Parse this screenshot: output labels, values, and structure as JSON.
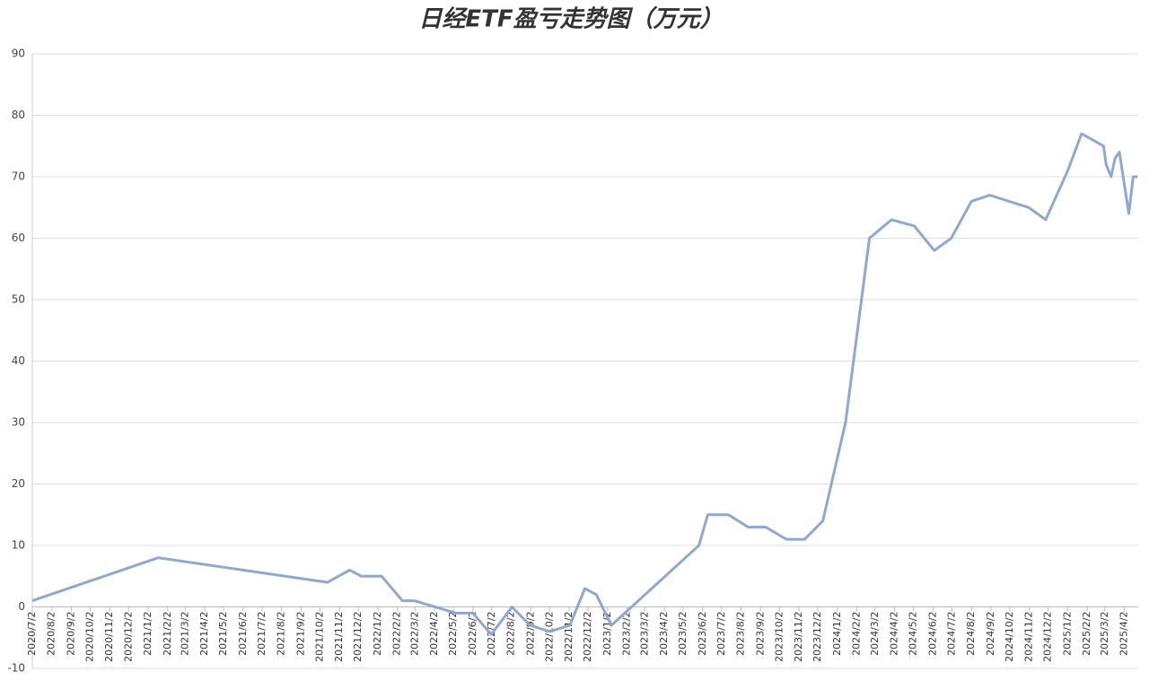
{
  "chart_data": {
    "type": "line",
    "title": "日经ETF盈亏走势图（万元）",
    "x": [
      "2020/7/2",
      "2021/1/18",
      "2021/10/14",
      "2021/11/18",
      "2021/12/7",
      "2022/1/8",
      "2022/2/10",
      "2022/3/1",
      "2022/5/6",
      "2022/6/2",
      "2022/7/1",
      "2022/8/3",
      "2022/9/1",
      "2022/10/2",
      "2022/11/3",
      "2022/11/27",
      "2022/12/15",
      "2023/1/8",
      "2023/5/27",
      "2023/6/10",
      "2023/7/13",
      "2023/8/13",
      "2023/9/10",
      "2023/10/13",
      "2023/11/11",
      "2023/12/10",
      "2024/1/15",
      "2024/2/22",
      "2024/3/28",
      "2024/5/3",
      "2024/6/4",
      "2024/7/1",
      "2024/8/2",
      "2024/8/31",
      "2024/11/1",
      "2024/11/28",
      "2025/1/2",
      "2025/1/24",
      "2025/2/28",
      "2025/3/4",
      "2025/3/12",
      "2025/3/18",
      "2025/3/25",
      "2025/4/9",
      "2025/4/16",
      "2025/4/23"
    ],
    "values": [
      1,
      8,
      4,
      6,
      5,
      5,
      1,
      1,
      -1,
      -1,
      -4.5,
      0,
      -3,
      -4,
      -3,
      3,
      2,
      -3,
      10,
      15,
      15,
      13,
      13,
      11,
      11,
      14,
      30,
      60,
      63,
      62,
      58,
      60,
      66,
      67,
      65,
      63,
      71,
      77,
      75,
      72,
      70,
      73,
      74,
      64,
      70,
      70
    ],
    "color": "#8fa8d0",
    "xlim": [
      "2020/7/2",
      "2025/4/24"
    ],
    "xticks": [
      "2020/7/2",
      "2020/8/2",
      "2020/9/2",
      "2020/10/2",
      "2020/11/2",
      "2020/12/2",
      "2021/1/2",
      "2021/2/2",
      "2021/3/2",
      "2021/4/2",
      "2021/5/2",
      "2021/6/2",
      "2021/7/2",
      "2021/8/2",
      "2021/9/2",
      "2021/10/2",
      "2021/11/2",
      "2021/12/2",
      "2022/1/2",
      "2022/2/2",
      "2022/3/2",
      "2022/4/2",
      "2022/5/2",
      "2022/6/2",
      "2022/7/2",
      "2022/8/2",
      "2022/9/2",
      "2022/10/2",
      "2022/11/2",
      "2022/12/2",
      "2023/1/2",
      "2023/2/2",
      "2023/3/2",
      "2023/4/2",
      "2023/5/2",
      "2023/6/2",
      "2023/7/2",
      "2023/8/2",
      "2023/9/2",
      "2023/10/2",
      "2023/11/2",
      "2023/12/2",
      "2024/1/2",
      "2024/2/2",
      "2024/3/2",
      "2024/4/2",
      "2024/5/2",
      "2024/6/2",
      "2024/7/2",
      "2024/8/2",
      "2024/9/2",
      "2024/10/2",
      "2024/11/2",
      "2024/12/2",
      "2025/1/2",
      "2025/2/2",
      "2025/3/2",
      "2025/4/2"
    ],
    "ylim": [
      -10,
      90
    ],
    "yticks": [
      -10,
      0,
      10,
      20,
      30,
      40,
      50,
      60,
      70,
      80,
      90
    ],
    "grid": true
  }
}
